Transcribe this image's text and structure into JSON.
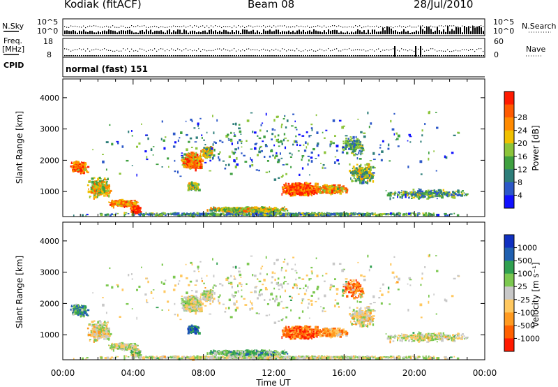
{
  "header": {
    "station": "Kodiak (fitACF)",
    "beam": "Beam 08",
    "date": "28/Jul/2010"
  },
  "top_panels": {
    "nsky_label": "N.Sky",
    "nsearch_label": "N.Search",
    "nsky_ticks": [
      "10^5",
      "10^0"
    ],
    "nsearch_ticks": [
      "10^5",
      "10^0"
    ],
    "freq_label_1": "Freq.",
    "freq_label_2": "[MHz]",
    "freq_ticks": [
      "18",
      "8"
    ],
    "nave_label": "Nave",
    "nave_ticks": [
      "60",
      "0"
    ],
    "cpid_label": "CPID",
    "cpid_value": "normal (fast) 151"
  },
  "chart_data": [
    {
      "type": "heatmap",
      "quantity": "power",
      "ylabel": "Slant Range [km]",
      "ylim": [
        200,
        4600
      ],
      "yticks": [
        1000,
        2000,
        3000,
        4000
      ],
      "xlabel": "",
      "xlim_hours": [
        0,
        24
      ],
      "colorbar_label": "Power [dB]",
      "colorbar_ticks": [
        "4",
        "8",
        "12",
        "16",
        "20",
        "24",
        "28"
      ],
      "colorbar_colors": [
        "#1010ff",
        "#2c58c8",
        "#2e7e7a",
        "#3fa040",
        "#8cc43a",
        "#f0c000",
        "#ff8a00",
        "#ff5a00",
        "#ff1a00"
      ]
    },
    {
      "type": "heatmap",
      "quantity": "velocity",
      "ylabel": "Slant Range [km]",
      "ylim": [
        200,
        4600
      ],
      "yticks": [
        1000,
        2000,
        3000,
        4000
      ],
      "xlabel": "Time UT",
      "xticks": [
        "00:00",
        "04:00",
        "08:00",
        "12:00",
        "16:00",
        "20:00",
        "00:00"
      ],
      "xlim_hours": [
        0,
        24
      ],
      "colorbar_label": "Velocity [m s⁻¹]",
      "colorbar_ticks": [
        "1000",
        "500",
        "100",
        "25",
        "-25",
        "-100",
        "-500",
        "-1000"
      ],
      "colorbar_colors": [
        "#1030c0",
        "#2060b0",
        "#30a050",
        "#7cc850",
        "#c8c8c8",
        "#ffc860",
        "#ff9a20",
        "#ff6000",
        "#ff1a00"
      ]
    }
  ]
}
